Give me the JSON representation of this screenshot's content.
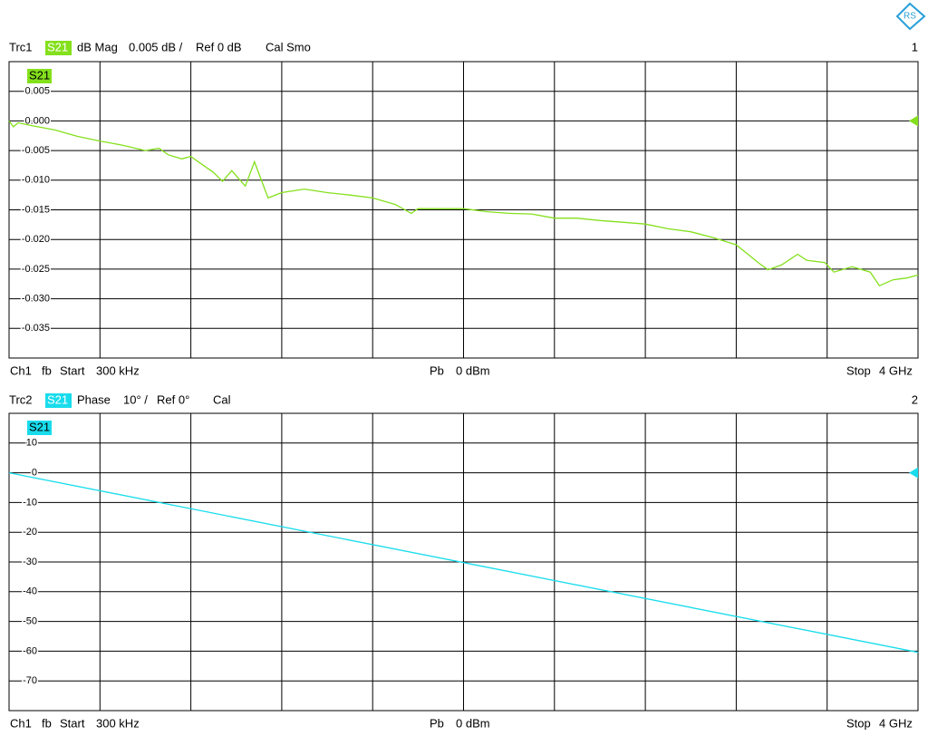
{
  "chart_data": [
    {
      "type": "line",
      "header": {
        "trace": "Trc1",
        "param": "S21",
        "format": "dB Mag",
        "scale": "0.005 dB /",
        "ref_label": "Ref 0 dB",
        "cal": "Cal Smo",
        "number": "1"
      },
      "ref": 0,
      "footer": {
        "channel": "Ch1",
        "sweep": "fb",
        "start_word": "Start",
        "start": "300 kHz",
        "power_word": "Pb",
        "power": "0 dBm",
        "stop_word": "Stop",
        "stop": "4 GHz"
      },
      "xlim": [
        0.0003,
        4
      ],
      "ylim": [
        -0.04,
        0.01
      ],
      "yticks": [
        {
          "value": 0.005,
          "label": "0.005"
        },
        {
          "value": 0,
          "label": "0.000"
        },
        {
          "value": -0.005,
          "label": "-0.005"
        },
        {
          "value": -0.01,
          "label": "-0.010"
        },
        {
          "value": -0.015,
          "label": "-0.015"
        },
        {
          "value": -0.02,
          "label": "-0.020"
        },
        {
          "value": -0.025,
          "label": "-0.025"
        },
        {
          "value": -0.03,
          "label": "-0.030"
        },
        {
          "value": -0.035,
          "label": "-0.035"
        }
      ],
      "series": [
        {
          "name": "S21",
          "color": "#84e01c",
          "x": [
            0.0003,
            0.02,
            0.04,
            0.1,
            0.2,
            0.3,
            0.4,
            0.5,
            0.6,
            0.66,
            0.7,
            0.76,
            0.8,
            0.9,
            0.94,
            0.98,
            1.04,
            1.08,
            1.14,
            1.2,
            1.3,
            1.4,
            1.5,
            1.6,
            1.7,
            1.77,
            1.8,
            1.9,
            2.0,
            2.1,
            2.2,
            2.3,
            2.4,
            2.5,
            2.6,
            2.7,
            2.8,
            2.9,
            3.0,
            3.1,
            3.2,
            3.3,
            3.34,
            3.4,
            3.47,
            3.51,
            3.59,
            3.63,
            3.71,
            3.79,
            3.83,
            3.89,
            3.95,
            4
          ],
          "values": [
            0,
            -0.001,
            -0.0003,
            -0.0008,
            -0.0015,
            -0.0026,
            -0.0034,
            -0.0041,
            -0.005,
            -0.0046,
            -0.0057,
            -0.0064,
            -0.006,
            -0.0087,
            -0.0102,
            -0.0084,
            -0.011,
            -0.0069,
            -0.013,
            -0.0121,
            -0.0115,
            -0.0121,
            -0.0125,
            -0.013,
            -0.0141,
            -0.0156,
            -0.0148,
            -0.0148,
            -0.0148,
            -0.0153,
            -0.0156,
            -0.0157,
            -0.0164,
            -0.0164,
            -0.0168,
            -0.0171,
            -0.0174,
            -0.0182,
            -0.0187,
            -0.0197,
            -0.0209,
            -0.024,
            -0.0251,
            -0.0243,
            -0.0225,
            -0.0235,
            -0.0239,
            -0.0255,
            -0.0246,
            -0.0255,
            -0.0278,
            -0.0268,
            -0.0265,
            -0.026
          ]
        }
      ]
    },
    {
      "type": "line",
      "header": {
        "trace": "Trc2",
        "param": "S21",
        "format": "Phase",
        "scale": "10° /",
        "ref_label": "Ref 0°",
        "cal": "Cal",
        "number": "2"
      },
      "ref": 0,
      "footer": {
        "channel": "Ch1",
        "sweep": "fb",
        "start_word": "Start",
        "start": "300 kHz",
        "power_word": "Pb",
        "power": "0 dBm",
        "stop_word": "Stop",
        "stop": "4 GHz"
      },
      "xlim": [
        0.0003,
        4
      ],
      "ylim": [
        -80,
        20
      ],
      "yticks": [
        10,
        0,
        -10,
        -20,
        -30,
        -40,
        -50,
        -60,
        -70
      ],
      "series": [
        {
          "name": "S21",
          "color": "#18dcec",
          "x": [
            0.0003,
            2,
            4
          ],
          "values": [
            0,
            -30.2,
            -60.4
          ]
        }
      ]
    }
  ]
}
